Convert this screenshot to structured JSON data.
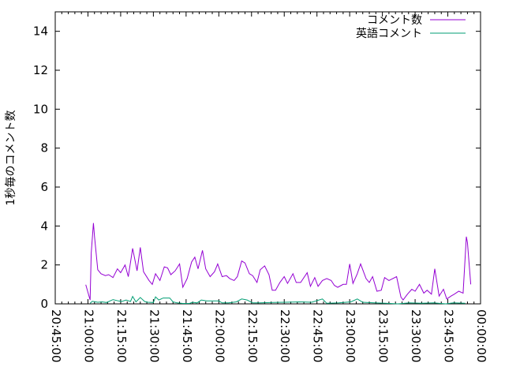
{
  "chart_data": {
    "type": "line",
    "title": "",
    "xlabel": "",
    "ylabel": "1秒毎のコメント数",
    "xlim": [
      "20:45:00",
      "00:00:00"
    ],
    "ylim": [
      0,
      15
    ],
    "x_ticks": [
      "20:45:00",
      "21:00:00",
      "21:15:00",
      "21:30:00",
      "21:45:00",
      "22:00:00",
      "22:15:00",
      "22:30:00",
      "22:45:00",
      "23:00:00",
      "23:15:00",
      "23:30:00",
      "23:45:00",
      "00:00:00"
    ],
    "y_ticks": [
      "0",
      "2",
      "4",
      "6",
      "8",
      "10",
      "12",
      "14"
    ],
    "grid": false,
    "legend_position": "top-right",
    "series": [
      {
        "name": "コメント数",
        "color": "#9400d3",
        "points": [
          [
            "20:59:00",
            0.98
          ],
          [
            "21:01:00",
            0.2
          ],
          [
            "21:01:30",
            2.6
          ],
          [
            "21:02:30",
            4.15
          ],
          [
            "21:03:00",
            3.45
          ],
          [
            "21:04:30",
            1.75
          ],
          [
            "21:06:00",
            1.55
          ],
          [
            "21:08:00",
            1.45
          ],
          [
            "21:09:30",
            1.5
          ],
          [
            "21:11:30",
            1.35
          ],
          [
            "21:13:30",
            1.8
          ],
          [
            "21:15:00",
            1.6
          ],
          [
            "21:17:00",
            2.0
          ],
          [
            "21:18:30",
            1.4
          ],
          [
            "21:20:30",
            2.85
          ],
          [
            "21:22:30",
            1.7
          ],
          [
            "21:24:00",
            2.9
          ],
          [
            "21:25:30",
            1.65
          ],
          [
            "21:28:00",
            1.2
          ],
          [
            "21:29:30",
            1.0
          ],
          [
            "21:31:00",
            1.55
          ],
          [
            "21:33:00",
            1.2
          ],
          [
            "21:35:00",
            1.9
          ],
          [
            "21:36:30",
            1.85
          ],
          [
            "21:38:00",
            1.5
          ],
          [
            "21:40:00",
            1.7
          ],
          [
            "21:42:00",
            2.05
          ],
          [
            "21:43:30",
            0.85
          ],
          [
            "21:45:30",
            1.3
          ],
          [
            "21:47:30",
            2.15
          ],
          [
            "21:49:00",
            2.4
          ],
          [
            "21:50:30",
            1.8
          ],
          [
            "21:52:30",
            2.75
          ],
          [
            "21:54:00",
            1.8
          ],
          [
            "21:56:00",
            1.4
          ],
          [
            "21:58:00",
            1.65
          ],
          [
            "21:59:30",
            2.05
          ],
          [
            "22:01:30",
            1.4
          ],
          [
            "22:03:30",
            1.45
          ],
          [
            "22:05:00",
            1.3
          ],
          [
            "22:07:00",
            1.2
          ],
          [
            "22:08:30",
            1.4
          ],
          [
            "22:10:30",
            2.2
          ],
          [
            "22:12:00",
            2.1
          ],
          [
            "22:14:00",
            1.55
          ],
          [
            "22:15:30",
            1.45
          ],
          [
            "22:17:30",
            1.1
          ],
          [
            "22:19:00",
            1.75
          ],
          [
            "22:21:00",
            1.95
          ],
          [
            "22:23:00",
            1.5
          ],
          [
            "22:24:30",
            0.7
          ],
          [
            "22:26:00",
            0.7
          ],
          [
            "22:28:00",
            1.1
          ],
          [
            "22:30:00",
            1.4
          ],
          [
            "22:31:30",
            1.05
          ],
          [
            "22:34:00",
            1.55
          ],
          [
            "22:35:30",
            1.1
          ],
          [
            "22:37:30",
            1.1
          ],
          [
            "22:40:30",
            1.6
          ],
          [
            "22:42:00",
            0.9
          ],
          [
            "22:44:00",
            1.35
          ],
          [
            "22:45:30",
            0.9
          ],
          [
            "22:47:30",
            1.2
          ],
          [
            "22:49:30",
            1.3
          ],
          [
            "22:51:30",
            1.2
          ],
          [
            "22:53:00",
            0.95
          ],
          [
            "22:54:30",
            0.85
          ],
          [
            "22:57:00",
            1.0
          ],
          [
            "22:58:30",
            1.0
          ],
          [
            "23:00:00",
            2.05
          ],
          [
            "23:01:30",
            1.05
          ],
          [
            "23:03:30",
            1.55
          ],
          [
            "23:05:00",
            2.05
          ],
          [
            "23:07:30",
            1.3
          ],
          [
            "23:09:00",
            1.1
          ],
          [
            "23:10:30",
            1.4
          ],
          [
            "23:12:30",
            0.65
          ],
          [
            "23:14:30",
            0.7
          ],
          [
            "23:16:00",
            1.35
          ],
          [
            "23:18:00",
            1.2
          ],
          [
            "23:21:30",
            1.4
          ],
          [
            "23:23:30",
            0.35
          ],
          [
            "23:24:30",
            0.2
          ],
          [
            "23:26:30",
            0.5
          ],
          [
            "23:28:30",
            0.75
          ],
          [
            "23:30:00",
            0.65
          ],
          [
            "23:32:00",
            1.0
          ],
          [
            "23:34:00",
            0.55
          ],
          [
            "23:35:30",
            0.7
          ],
          [
            "23:37:30",
            0.5
          ],
          [
            "23:39:00",
            1.8
          ],
          [
            "23:41:00",
            0.4
          ],
          [
            "23:43:00",
            0.75
          ],
          [
            "23:44:30",
            0.25
          ],
          [
            "23:46:30",
            0.4
          ],
          [
            "23:48:00",
            0.5
          ],
          [
            "23:50:00",
            0.65
          ],
          [
            "23:52:00",
            0.55
          ],
          [
            "23:53:30",
            3.45
          ],
          [
            "23:54:00",
            3.15
          ],
          [
            "23:55:30",
            1.0
          ]
        ]
      },
      {
        "name": "英語コメント",
        "color": "#009e73",
        "points": [
          [
            "21:01:00",
            0.03
          ],
          [
            "21:02:00",
            0.13
          ],
          [
            "21:04:30",
            0.08
          ],
          [
            "21:06:30",
            0.1
          ],
          [
            "21:08:30",
            0.07
          ],
          [
            "21:11:30",
            0.22
          ],
          [
            "21:14:00",
            0.15
          ],
          [
            "21:15:30",
            0.12
          ],
          [
            "21:17:30",
            0.2
          ],
          [
            "21:19:30",
            0.12
          ],
          [
            "21:20:30",
            0.38
          ],
          [
            "21:22:00",
            0.1
          ],
          [
            "21:24:00",
            0.33
          ],
          [
            "21:26:00",
            0.12
          ],
          [
            "21:27:30",
            0.08
          ],
          [
            "21:30:00",
            0.07
          ],
          [
            "21:31:00",
            0.36
          ],
          [
            "21:32:30",
            0.2
          ],
          [
            "21:34:30",
            0.3
          ],
          [
            "21:37:30",
            0.3
          ],
          [
            "21:39:00",
            0.1
          ],
          [
            "21:41:00",
            0.05
          ],
          [
            "21:43:30",
            0.02
          ],
          [
            "21:46:30",
            0.02
          ],
          [
            "21:48:00",
            0.08
          ],
          [
            "21:50:00",
            0.05
          ],
          [
            "21:52:00",
            0.2
          ],
          [
            "21:54:30",
            0.15
          ],
          [
            "21:57:30",
            0.15
          ],
          [
            "22:00:00",
            0.15
          ],
          [
            "22:01:30",
            0.05
          ],
          [
            "22:04:30",
            0.05
          ],
          [
            "22:08:00",
            0.1
          ],
          [
            "22:10:30",
            0.25
          ],
          [
            "22:13:00",
            0.2
          ],
          [
            "22:15:30",
            0.05
          ],
          [
            "22:19:00",
            0.05
          ],
          [
            "22:24:30",
            0.07
          ],
          [
            "22:30:00",
            0.08
          ],
          [
            "22:37:00",
            0.1
          ],
          [
            "22:42:30",
            0.08
          ],
          [
            "22:47:30",
            0.25
          ],
          [
            "22:49:30",
            0.03
          ],
          [
            "22:55:00",
            0.05
          ],
          [
            "23:00:30",
            0.1
          ],
          [
            "23:03:30",
            0.25
          ],
          [
            "23:06:00",
            0.08
          ],
          [
            "23:11:30",
            0.05
          ],
          [
            "23:16:30",
            0.03
          ],
          [
            "23:22:00",
            0.0
          ],
          [
            "23:27:30",
            0.05
          ],
          [
            "23:33:00",
            0.03
          ],
          [
            "23:38:30",
            0.05
          ],
          [
            "23:44:00",
            0.0
          ],
          [
            "23:47:30",
            0.05
          ],
          [
            "23:53:00",
            0.03
          ]
        ]
      }
    ]
  }
}
